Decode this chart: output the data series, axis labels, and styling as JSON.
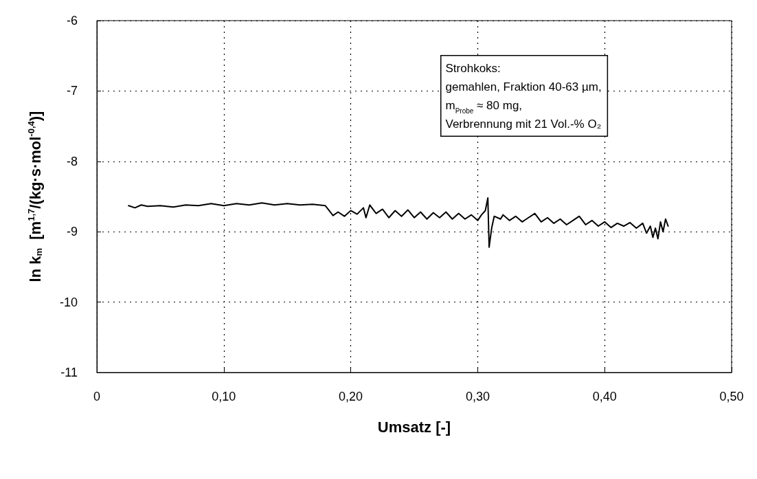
{
  "chart_data": {
    "type": "line",
    "xlabel": "Umsatz [-]",
    "ylabel": "ln k$_{m}$  [m$^{1,7}$/(kg·s·mol$^{-0,4}$)]",
    "annotations": [
      "Strohkoks:",
      "gemahlen, Fraktion 40-63 µm,",
      "m$_{Probe}$ ≈ 80 mg,",
      "Verbrennung mit 21 Vol.-% O₂"
    ],
    "xlim": [
      0,
      0.5
    ],
    "xticks": [
      0,
      {
        "value": 0.1,
        "label": "0,10"
      },
      {
        "value": 0.2,
        "label": "0,20"
      },
      {
        "value": 0.3,
        "label": "0,30"
      },
      {
        "value": 0.4,
        "label": "0,40"
      },
      {
        "value": 0.5,
        "label": "0,50"
      }
    ],
    "ylim": [
      -11,
      -6
    ],
    "yticks": [
      -11,
      -10,
      -9,
      -8,
      -7,
      -6
    ],
    "grid": true,
    "line_style": "solid",
    "marker": "none",
    "series": [
      {
        "color": "#000000",
        "x": [
          0.025,
          0.03,
          0.035,
          0.04,
          0.05,
          0.06,
          0.07,
          0.08,
          0.09,
          0.1,
          0.11,
          0.12,
          0.13,
          0.14,
          0.15,
          0.16,
          0.17,
          0.18,
          0.183,
          0.186,
          0.19,
          0.195,
          0.2,
          0.205,
          0.21,
          0.212,
          0.215,
          0.22,
          0.225,
          0.23,
          0.235,
          0.24,
          0.245,
          0.25,
          0.255,
          0.26,
          0.265,
          0.27,
          0.275,
          0.28,
          0.285,
          0.29,
          0.295,
          0.3,
          0.303,
          0.306,
          0.308,
          0.309,
          0.311,
          0.313,
          0.318,
          0.32,
          0.325,
          0.33,
          0.335,
          0.34,
          0.345,
          0.35,
          0.355,
          0.36,
          0.365,
          0.37,
          0.375,
          0.38,
          0.385,
          0.39,
          0.395,
          0.4,
          0.405,
          0.41,
          0.415,
          0.42,
          0.425,
          0.43,
          0.433,
          0.436,
          0.438,
          0.44,
          0.442,
          0.444,
          0.446,
          0.448,
          0.45
        ],
        "values": [
          -8.63,
          -8.66,
          -8.62,
          -8.64,
          -8.63,
          -8.65,
          -8.62,
          -8.63,
          -8.6,
          -8.63,
          -8.6,
          -8.62,
          -8.59,
          -8.62,
          -8.6,
          -8.62,
          -8.61,
          -8.63,
          -8.7,
          -8.77,
          -8.72,
          -8.78,
          -8.7,
          -8.75,
          -8.66,
          -8.8,
          -8.62,
          -8.74,
          -8.68,
          -8.8,
          -8.7,
          -8.78,
          -8.69,
          -8.8,
          -8.72,
          -8.82,
          -8.73,
          -8.8,
          -8.72,
          -8.82,
          -8.74,
          -8.82,
          -8.76,
          -8.84,
          -8.76,
          -8.7,
          -8.52,
          -9.22,
          -8.95,
          -8.78,
          -8.82,
          -8.76,
          -8.84,
          -8.78,
          -8.86,
          -8.8,
          -8.74,
          -8.86,
          -8.8,
          -8.88,
          -8.82,
          -8.9,
          -8.84,
          -8.78,
          -8.9,
          -8.84,
          -8.92,
          -8.86,
          -8.94,
          -8.88,
          -8.92,
          -8.87,
          -8.95,
          -8.88,
          -9.02,
          -8.92,
          -9.08,
          -8.95,
          -9.1,
          -8.86,
          -9.0,
          -8.82,
          -8.92
        ]
      }
    ]
  }
}
